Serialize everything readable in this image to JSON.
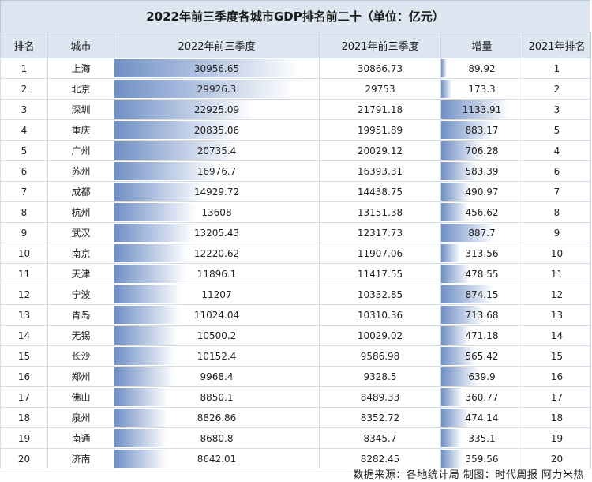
{
  "title": "2022年前三季度各城市GDP排名前二十（单位：亿元）",
  "headers": [
    "排名",
    "城市",
    "2022年前三季度",
    "2021年前三季度",
    "增量",
    "2021年排名"
  ],
  "rows": [
    {
      "rank": "1",
      "city": "上海",
      "gdp2022": "30956.65",
      "gdp2021": "30866.73",
      "inc": "89.92",
      "rank2021": "1",
      "v2022": 30956.65,
      "vinc": 89.92
    },
    {
      "rank": "2",
      "city": "北京",
      "gdp2022": "29926.3",
      "gdp2021": "29753",
      "inc": "173.3",
      "rank2021": "2",
      "v2022": 29926.3,
      "vinc": 173.3
    },
    {
      "rank": "3",
      "city": "深圳",
      "gdp2022": "22925.09",
      "gdp2021": "21791.18",
      "inc": "1133.91",
      "rank2021": "3",
      "v2022": 22925.09,
      "vinc": 1133.91
    },
    {
      "rank": "4",
      "city": "重庆",
      "gdp2022": "20835.06",
      "gdp2021": "19951.89",
      "inc": "883.17",
      "rank2021": "5",
      "v2022": 20835.06,
      "vinc": 883.17
    },
    {
      "rank": "5",
      "city": "广州",
      "gdp2022": "20735.4",
      "gdp2021": "20029.12",
      "inc": "706.28",
      "rank2021": "4",
      "v2022": 20735.4,
      "vinc": 706.28
    },
    {
      "rank": "6",
      "city": "苏州",
      "gdp2022": "16976.7",
      "gdp2021": "16393.31",
      "inc": "583.39",
      "rank2021": "6",
      "v2022": 16976.7,
      "vinc": 583.39
    },
    {
      "rank": "7",
      "city": "成都",
      "gdp2022": "14929.72",
      "gdp2021": "14438.75",
      "inc": "490.97",
      "rank2021": "7",
      "v2022": 14929.72,
      "vinc": 490.97
    },
    {
      "rank": "8",
      "city": "杭州",
      "gdp2022": "13608",
      "gdp2021": "13151.38",
      "inc": "456.62",
      "rank2021": "8",
      "v2022": 13608,
      "vinc": 456.62
    },
    {
      "rank": "9",
      "city": "武汉",
      "gdp2022": "13205.43",
      "gdp2021": "12317.73",
      "inc": "887.7",
      "rank2021": "9",
      "v2022": 13205.43,
      "vinc": 887.7
    },
    {
      "rank": "10",
      "city": "南京",
      "gdp2022": "12220.62",
      "gdp2021": "11907.06",
      "inc": "313.56",
      "rank2021": "10",
      "v2022": 12220.62,
      "vinc": 313.56
    },
    {
      "rank": "11",
      "city": "天津",
      "gdp2022": "11896.1",
      "gdp2021": "11417.55",
      "inc": "478.55",
      "rank2021": "11",
      "v2022": 11896.1,
      "vinc": 478.55
    },
    {
      "rank": "12",
      "city": "宁波",
      "gdp2022": "11207",
      "gdp2021": "10332.85",
      "inc": "874.15",
      "rank2021": "12",
      "v2022": 11207,
      "vinc": 874.15
    },
    {
      "rank": "13",
      "city": "青岛",
      "gdp2022": "11024.04",
      "gdp2021": "10310.36",
      "inc": "713.68",
      "rank2021": "13",
      "v2022": 11024.04,
      "vinc": 713.68
    },
    {
      "rank": "14",
      "city": "无锡",
      "gdp2022": "10500.2",
      "gdp2021": "10029.02",
      "inc": "471.18",
      "rank2021": "14",
      "v2022": 10500.2,
      "vinc": 471.18
    },
    {
      "rank": "15",
      "city": "长沙",
      "gdp2022": "10152.4",
      "gdp2021": "9586.98",
      "inc": "565.42",
      "rank2021": "15",
      "v2022": 10152.4,
      "vinc": 565.42
    },
    {
      "rank": "16",
      "city": "郑州",
      "gdp2022": "9968.4",
      "gdp2021": "9328.5",
      "inc": "639.9",
      "rank2021": "16",
      "v2022": 9968.4,
      "vinc": 639.9
    },
    {
      "rank": "17",
      "city": "佛山",
      "gdp2022": "8850.1",
      "gdp2021": "8489.33",
      "inc": "360.77",
      "rank2021": "17",
      "v2022": 8850.1,
      "vinc": 360.77
    },
    {
      "rank": "18",
      "city": "泉州",
      "gdp2022": "8826.86",
      "gdp2021": "8352.72",
      "inc": "474.14",
      "rank2021": "18",
      "v2022": 8826.86,
      "vinc": 474.14
    },
    {
      "rank": "19",
      "city": "南通",
      "gdp2022": "8680.8",
      "gdp2021": "8345.7",
      "inc": "335.1",
      "rank2021": "19",
      "v2022": 8680.8,
      "vinc": 335.1
    },
    {
      "rank": "20",
      "city": "济南",
      "gdp2022": "8642.01",
      "gdp2021": "8282.45",
      "inc": "359.56",
      "rank2021": "20",
      "v2022": 8642.01,
      "vinc": 359.56
    }
  ],
  "footer": "数据来源：各地统计局   制图：时代周报  阿力米热",
  "colors": {
    "header_bg": "#dde6f1",
    "bar": "#6f8fc6"
  }
}
